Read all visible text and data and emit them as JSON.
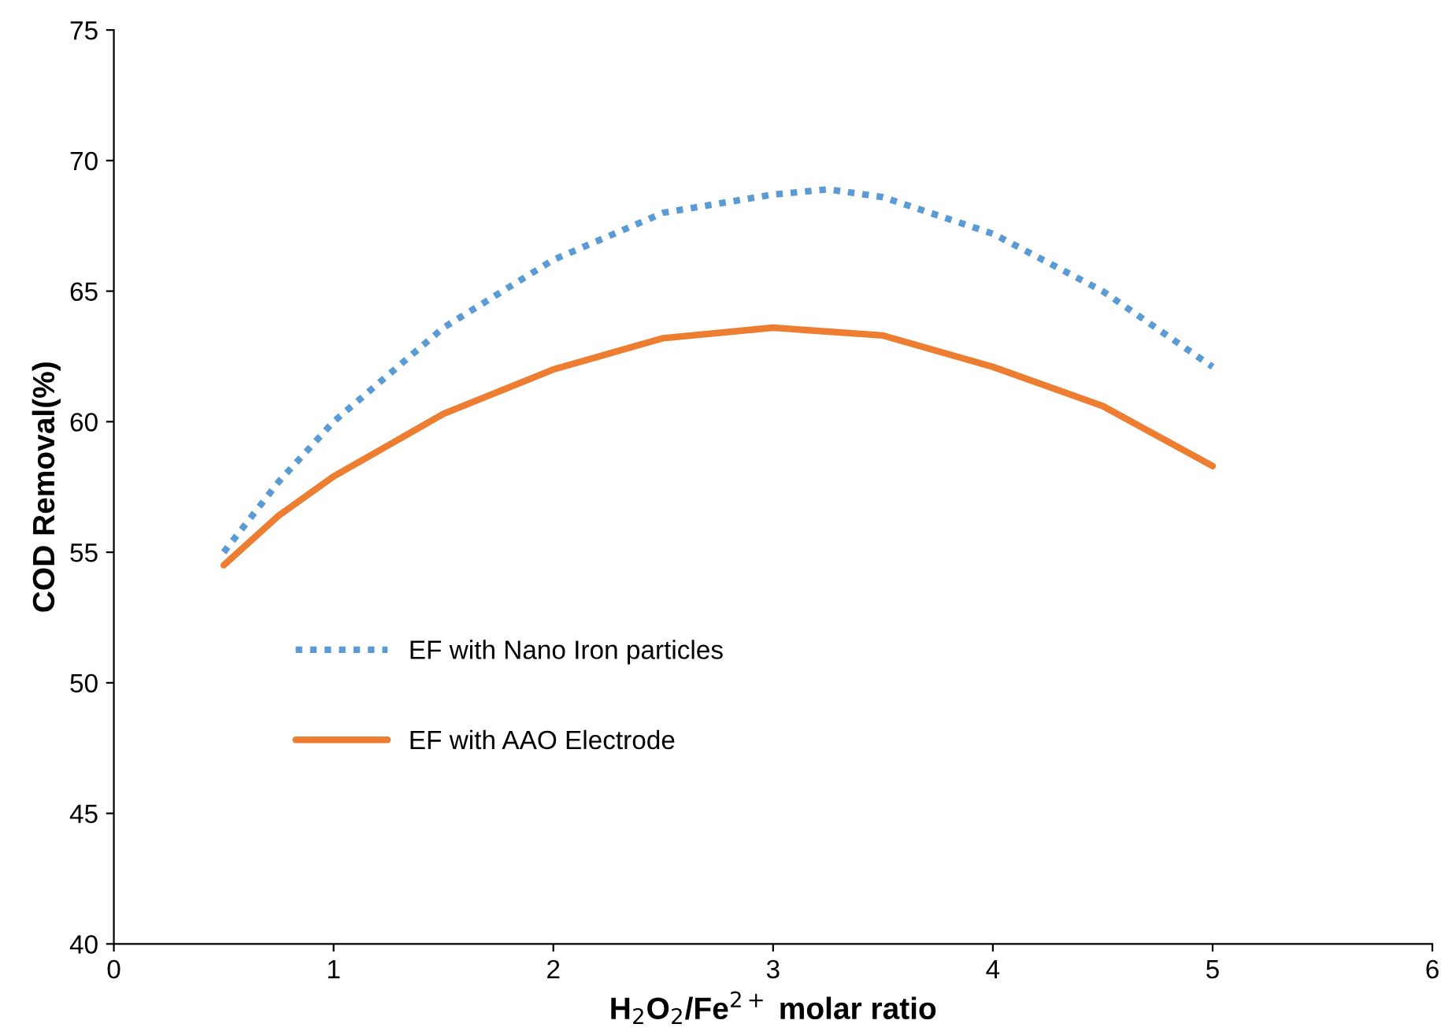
{
  "chart_data": {
    "type": "line",
    "xlabel": "H$_{2}$O$_{2}$/Fe$^{2+}$ molar ratio",
    "ylabel": "COD Removal(%)",
    "xlim": [
      0,
      6
    ],
    "xticks": [
      0,
      1,
      2,
      3,
      4,
      5,
      6
    ],
    "ylim": [
      40,
      75
    ],
    "yticks": [
      40,
      45,
      50,
      55,
      60,
      65,
      70,
      75
    ],
    "grid": false,
    "legend": "left",
    "marker": "none",
    "series": [
      {
        "name": "EF with Nano Iron particles",
        "color": "#5b9bd5",
        "line_style": "dotted",
        "x": [
          0.5,
          0.75,
          1,
          1.5,
          2,
          2.5,
          3,
          3.25,
          3.5,
          4,
          4.5,
          5
        ],
        "values": [
          55.0,
          57.7,
          60.0,
          63.6,
          66.2,
          68.0,
          68.7,
          68.9,
          68.6,
          67.2,
          65.0,
          62.1
        ]
      },
      {
        "name": "EF with AAO Electrode",
        "color": "#ed7d31",
        "line_style": "solid",
        "x": [
          0.5,
          0.75,
          1,
          1.5,
          2,
          2.5,
          3,
          3.5,
          4,
          4.5,
          5
        ],
        "values": [
          54.5,
          56.4,
          57.9,
          60.3,
          62.0,
          63.2,
          63.6,
          63.3,
          62.1,
          60.6,
          58.3
        ]
      }
    ]
  }
}
